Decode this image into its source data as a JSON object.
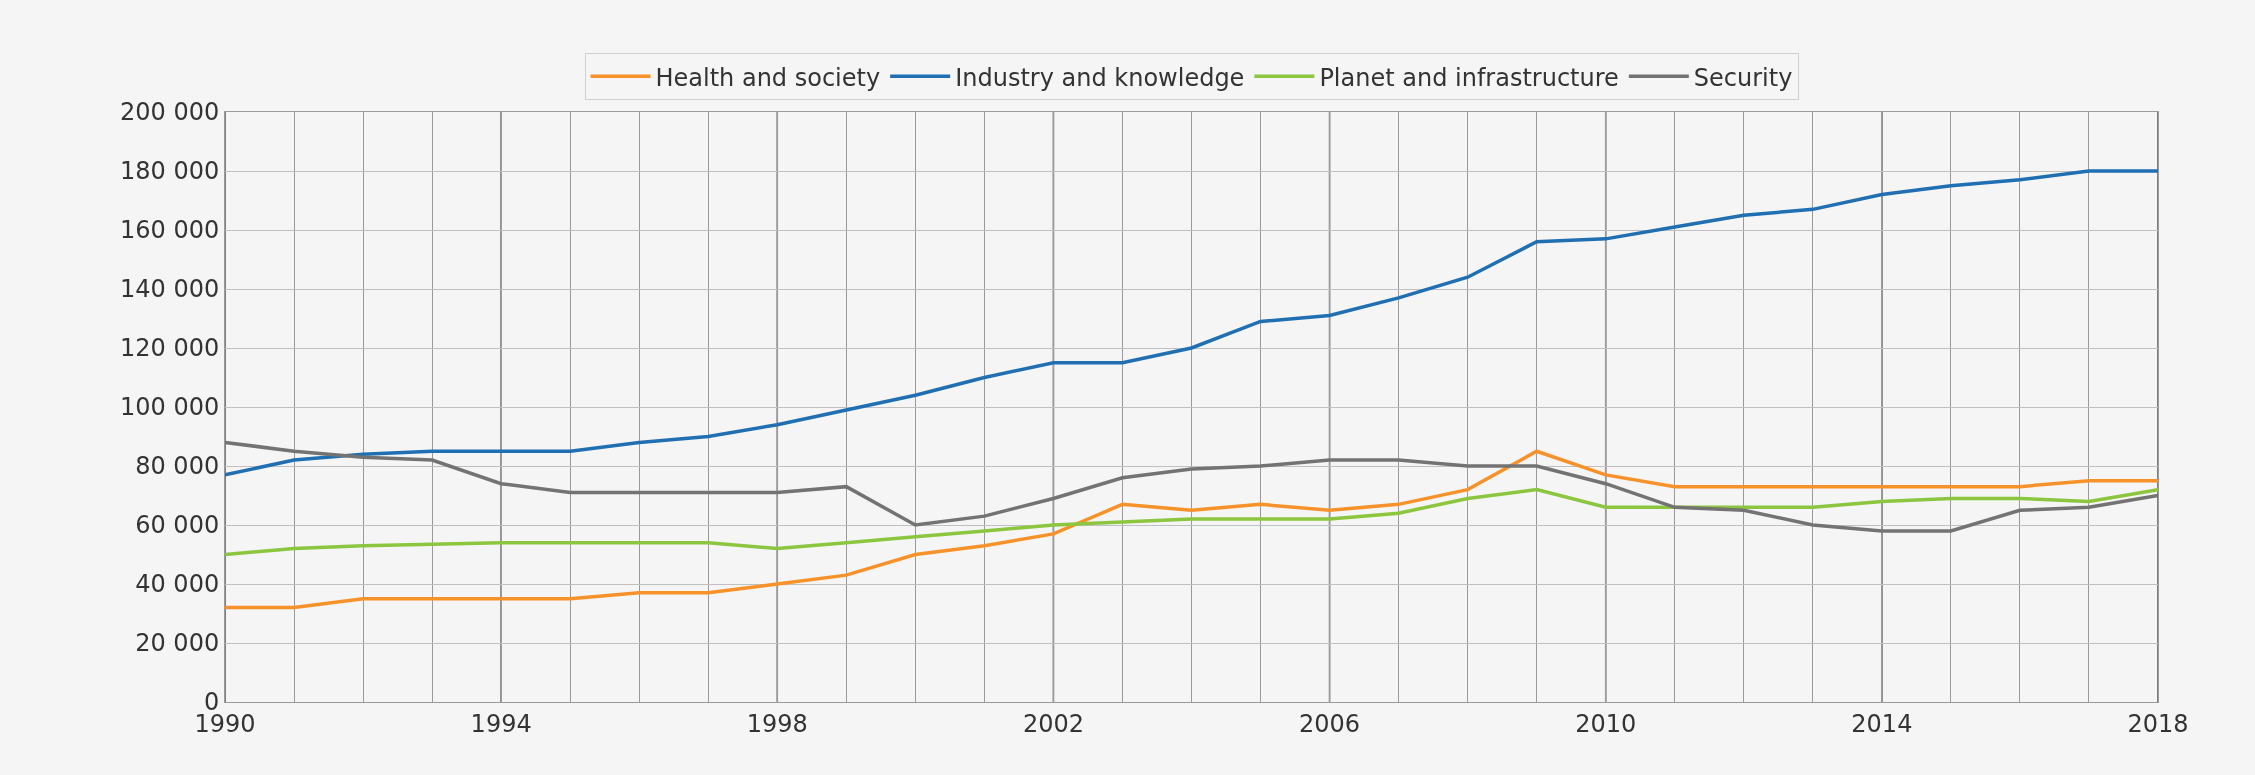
{
  "chart_data": {
    "type": "line",
    "x": [
      1990,
      1991,
      1992,
      1993,
      1994,
      1995,
      1996,
      1997,
      1998,
      1999,
      2000,
      2001,
      2002,
      2003,
      2004,
      2005,
      2006,
      2007,
      2008,
      2009,
      2010,
      2011,
      2012,
      2013,
      2014,
      2015,
      2016,
      2017,
      2018
    ],
    "series": [
      {
        "name": "Health and society",
        "color": "#f7922a",
        "values": [
          32000,
          32000,
          35000,
          35000,
          35000,
          35000,
          37000,
          37000,
          40000,
          43000,
          50000,
          53000,
          57000,
          67000,
          65000,
          67000,
          65000,
          67000,
          72000,
          85000,
          77000,
          73000,
          73000,
          73000,
          73000,
          73000,
          73000,
          75000,
          75000
        ]
      },
      {
        "name": "Industry and knowledge",
        "color": "#1f6fb2",
        "values": [
          77000,
          82000,
          84000,
          85000,
          85000,
          85000,
          88000,
          90000,
          94000,
          99000,
          104000,
          110000,
          115000,
          115000,
          120000,
          129000,
          131000,
          137000,
          144000,
          156000,
          157000,
          161000,
          165000,
          167000,
          172000,
          175000,
          177000,
          180000,
          180000
        ]
      },
      {
        "name": "Planet and infrastructure",
        "color": "#8cc63f",
        "values": [
          50000,
          52000,
          53000,
          53500,
          54000,
          54000,
          54000,
          54000,
          52000,
          54000,
          56000,
          58000,
          60000,
          61000,
          62000,
          62000,
          62000,
          64000,
          69000,
          72000,
          66000,
          66000,
          66000,
          66000,
          68000,
          69000,
          69000,
          68000,
          72000
        ]
      },
      {
        "name": "Security",
        "color": "#737373",
        "values": [
          88000,
          85000,
          83000,
          82000,
          74000,
          71000,
          71000,
          71000,
          71000,
          73000,
          60000,
          63000,
          69000,
          76000,
          79000,
          80000,
          82000,
          82000,
          80000,
          80000,
          74000,
          66000,
          65000,
          60000,
          58000,
          58000,
          65000,
          66000,
          70000
        ]
      }
    ],
    "xlim": [
      1990,
      2018
    ],
    "xticks": [
      1990,
      {
        "value": 1991,
        "label": null
      },
      {
        "value": 1992,
        "label": null
      },
      {
        "value": 1993,
        "label": null
      },
      1994,
      {
        "value": 1995,
        "label": null
      },
      {
        "value": 1996,
        "label": null
      },
      {
        "value": 1997,
        "label": null
      },
      1998,
      {
        "value": 1999,
        "label": null
      },
      {
        "value": 2000,
        "label": null
      },
      {
        "value": 2001,
        "label": null
      },
      2002,
      {
        "value": 2003,
        "label": null
      },
      {
        "value": 2004,
        "label": null
      },
      {
        "value": 2005,
        "label": null
      },
      2006,
      {
        "value": 2007,
        "label": null
      },
      {
        "value": 2008,
        "label": null
      },
      {
        "value": 2009,
        "label": null
      },
      2010,
      {
        "value": 2011,
        "label": null
      },
      {
        "value": 2012,
        "label": null
      },
      {
        "value": 2013,
        "label": null
      },
      2014,
      {
        "value": 2015,
        "label": null
      },
      {
        "value": 2016,
        "label": null
      },
      {
        "value": 2017,
        "label": null
      },
      2018
    ],
    "ylim": [
      0,
      200000
    ],
    "yticks": [
      0,
      {
        "value": 20000,
        "label": "20 000"
      },
      {
        "value": 40000,
        "label": "40 000"
      },
      {
        "value": 60000,
        "label": "60 000"
      },
      {
        "value": 80000,
        "label": "80 000"
      },
      {
        "value": 100000,
        "label": "100 000"
      },
      {
        "value": 120000,
        "label": "120 000"
      },
      {
        "value": 140000,
        "label": "140 000"
      },
      {
        "value": 160000,
        "label": "160 000"
      },
      {
        "value": 180000,
        "label": "180 000"
      },
      {
        "value": 200000,
        "label": "200 000"
      }
    ],
    "grid": true,
    "legend": "top",
    "marker": "none",
    "line_style": "solid"
  }
}
